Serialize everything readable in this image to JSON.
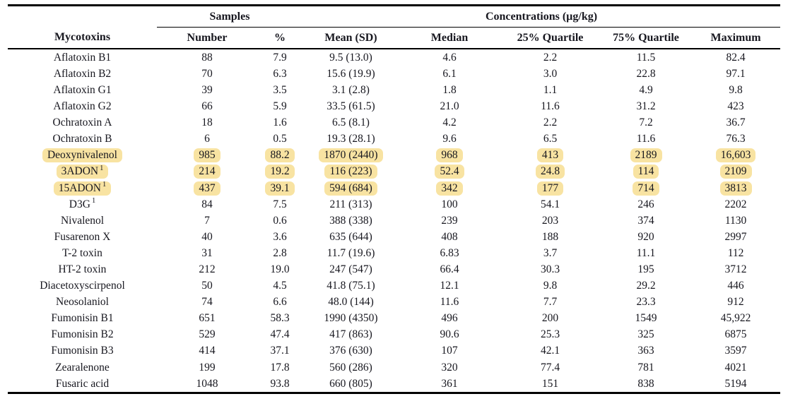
{
  "colors": {
    "highlight": "#f8e3a2",
    "text": "#17171f",
    "rule": "#000000"
  },
  "header": {
    "groups": {
      "samples": "Samples",
      "concentrations": "Concentrations (µg/kg)"
    },
    "columns": [
      "Mycotoxins",
      "Number",
      "%",
      "Mean (SD)",
      "Median",
      "25% Quartile",
      "75% Quartile",
      "Maximum"
    ]
  },
  "rows": [
    {
      "name": "Aflatoxin B1",
      "sup": "",
      "highlight": false,
      "values": [
        "88",
        "7.9",
        "9.5 (13.0)",
        "4.6",
        "2.2",
        "11.5",
        "82.4"
      ]
    },
    {
      "name": "Aflatoxin B2",
      "sup": "",
      "highlight": false,
      "values": [
        "70",
        "6.3",
        "15.6 (19.9)",
        "6.1",
        "3.0",
        "22.8",
        "97.1"
      ]
    },
    {
      "name": "Aflatoxin G1",
      "sup": "",
      "highlight": false,
      "values": [
        "39",
        "3.5",
        "3.1 (2.8)",
        "1.8",
        "1.1",
        "4.9",
        "9.8"
      ]
    },
    {
      "name": "Aflatoxin G2",
      "sup": "",
      "highlight": false,
      "values": [
        "66",
        "5.9",
        "33.5 (61.5)",
        "21.0",
        "11.6",
        "31.2",
        "423"
      ]
    },
    {
      "name": "Ochratoxin A",
      "sup": "",
      "highlight": false,
      "values": [
        "18",
        "1.6",
        "6.5 (8.1)",
        "4.2",
        "2.2",
        "7.2",
        "36.7"
      ]
    },
    {
      "name": "Ochratoxin B",
      "sup": "",
      "highlight": false,
      "values": [
        "6",
        "0.5",
        "19.3 (28.1)",
        "9.6",
        "6.5",
        "11.6",
        "76.3"
      ]
    },
    {
      "name": "Deoxynivalenol",
      "sup": "",
      "highlight": true,
      "values": [
        "985",
        "88.2",
        "1870 (2440)",
        "968",
        "413",
        "2189",
        "16,603"
      ]
    },
    {
      "name": "3ADON",
      "sup": "1",
      "highlight": true,
      "values": [
        "214",
        "19.2",
        "116 (223)",
        "52.4",
        "24.8",
        "114",
        "2109"
      ]
    },
    {
      "name": "15ADON",
      "sup": "1",
      "highlight": true,
      "values": [
        "437",
        "39.1",
        "594 (684)",
        "342",
        "177",
        "714",
        "3813"
      ]
    },
    {
      "name": "D3G",
      "sup": "1",
      "highlight": false,
      "values": [
        "84",
        "7.5",
        "211 (313)",
        "100",
        "54.1",
        "246",
        "2202"
      ]
    },
    {
      "name": "Nivalenol",
      "sup": "",
      "highlight": false,
      "values": [
        "7",
        "0.6",
        "388 (338)",
        "239",
        "203",
        "374",
        "1130"
      ]
    },
    {
      "name": "Fusarenon X",
      "sup": "",
      "highlight": false,
      "values": [
        "40",
        "3.6",
        "635 (644)",
        "408",
        "188",
        "920",
        "2997"
      ]
    },
    {
      "name": "T-2 toxin",
      "sup": "",
      "highlight": false,
      "values": [
        "31",
        "2.8",
        "11.7 (19.6)",
        "6.83",
        "3.7",
        "11.1",
        "112"
      ]
    },
    {
      "name": "HT-2 toxin",
      "sup": "",
      "highlight": false,
      "values": [
        "212",
        "19.0",
        "247 (547)",
        "66.4",
        "30.3",
        "195",
        "3712"
      ]
    },
    {
      "name": "Diacetoxyscirpenol",
      "sup": "",
      "highlight": false,
      "values": [
        "50",
        "4.5",
        "41.8 (75.1)",
        "12.1",
        "9.8",
        "29.2",
        "446"
      ]
    },
    {
      "name": "Neosolaniol",
      "sup": "",
      "highlight": false,
      "values": [
        "74",
        "6.6",
        "48.0 (144)",
        "11.6",
        "7.7",
        "23.3",
        "912"
      ]
    },
    {
      "name": "Fumonisin B1",
      "sup": "",
      "highlight": false,
      "values": [
        "651",
        "58.3",
        "1990 (4350)",
        "496",
        "200",
        "1549",
        "45,922"
      ]
    },
    {
      "name": "Fumonisin B2",
      "sup": "",
      "highlight": false,
      "values": [
        "529",
        "47.4",
        "417 (863)",
        "90.6",
        "25.3",
        "325",
        "6875"
      ]
    },
    {
      "name": "Fumonisin B3",
      "sup": "",
      "highlight": false,
      "values": [
        "414",
        "37.1",
        "376 (630)",
        "107",
        "42.1",
        "363",
        "3597"
      ]
    },
    {
      "name": "Zearalenone",
      "sup": "",
      "highlight": false,
      "values": [
        "199",
        "17.8",
        "560 (286)",
        "320",
        "77.4",
        "781",
        "4021"
      ]
    },
    {
      "name": "Fusaric acid",
      "sup": "",
      "highlight": false,
      "values": [
        "1048",
        "93.8",
        "660 (805)",
        "361",
        "151",
        "838",
        "5194"
      ]
    }
  ]
}
